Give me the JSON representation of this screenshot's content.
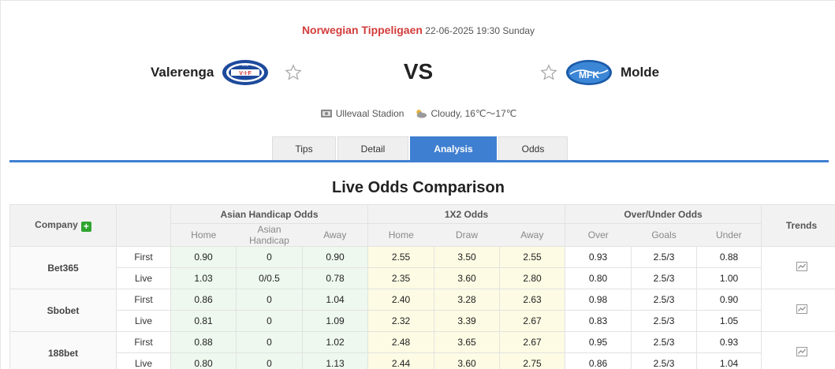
{
  "match": {
    "league": "Norwegian Tippeligaen",
    "datetime": "22-06-2025 19:30 Sunday",
    "home_team": "Valerenga",
    "away_team": "Molde",
    "vs": "VS",
    "venue": "Ullevaal Stadion",
    "weather": "Cloudy, 16℃～17℃"
  },
  "tabs": [
    {
      "label": "Tips",
      "active": false
    },
    {
      "label": "Detail",
      "active": false
    },
    {
      "label": "Analysis",
      "active": true
    },
    {
      "label": "Odds",
      "active": false
    }
  ],
  "section_title": "Live Odds Comparison",
  "table": {
    "company_header": "Company",
    "plus_symbol": "+",
    "groups": [
      "Asian Handicap Odds",
      "1X2 Odds",
      "Over/Under Odds"
    ],
    "trends_header": "Trends",
    "subheaders": [
      "Home",
      "Asian Handicap",
      "Away",
      "Home",
      "Draw",
      "Away",
      "Over",
      "Goals",
      "Under"
    ],
    "rows": [
      {
        "company": "Bet365",
        "first": {
          "label": "First",
          "values": [
            "0.90",
            "0",
            "0.90",
            "2.55",
            "3.50",
            "2.55",
            "0.93",
            "2.5/3",
            "0.88"
          ]
        },
        "live": {
          "label": "Live",
          "values": [
            "1.03",
            "0/0.5",
            "0.78",
            "2.35",
            "3.60",
            "2.80",
            "0.80",
            "2.5/3",
            "1.00"
          ]
        }
      },
      {
        "company": "Sbobet",
        "first": {
          "label": "First",
          "values": [
            "0.86",
            "0",
            "1.04",
            "2.40",
            "3.28",
            "2.63",
            "0.98",
            "2.5/3",
            "0.90"
          ]
        },
        "live": {
          "label": "Live",
          "values": [
            "0.81",
            "0",
            "1.09",
            "2.32",
            "3.39",
            "2.67",
            "0.83",
            "2.5/3",
            "1.05"
          ]
        }
      },
      {
        "company": "188bet",
        "first": {
          "label": "First",
          "values": [
            "0.88",
            "0",
            "1.02",
            "2.48",
            "3.65",
            "2.67",
            "0.95",
            "2.5/3",
            "0.93"
          ]
        },
        "live": {
          "label": "Live",
          "values": [
            "0.80",
            "0",
            "1.13",
            "2.44",
            "3.60",
            "2.75",
            "0.86",
            "2.5/3",
            "1.04"
          ]
        }
      }
    ]
  },
  "colors": {
    "league": "#d23c3c",
    "accent": "#3f7fd1",
    "plus": "#2fa52f",
    "asian_bg": "#eef8ee",
    "x12_bg": "#fdfbe3"
  },
  "icons": [
    "valerenga-logo",
    "molde-logo",
    "star-icon",
    "stadium-icon",
    "cloudy-icon",
    "plus-icon",
    "trend-chart-icon"
  ]
}
